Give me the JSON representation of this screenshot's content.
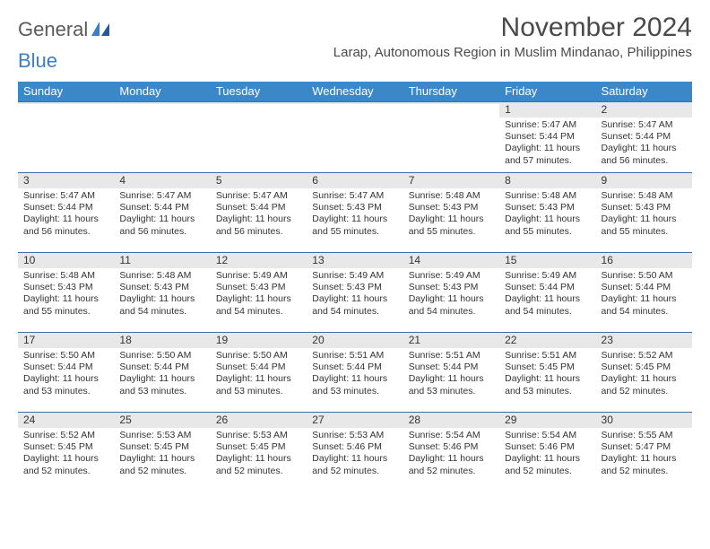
{
  "logo": {
    "text1": "General",
    "text2": "Blue"
  },
  "title": "November 2024",
  "location": "Larap, Autonomous Region in Muslim Mindanao, Philippines",
  "colors": {
    "header_bg": "#3a88c8",
    "header_text": "#ffffff",
    "daynum_bg": "#e8e8e8",
    "week_border": "#3a6ea8",
    "logo_gray": "#5a5a5a",
    "logo_blue": "#3a7fc4",
    "text": "#333333"
  },
  "day_headers": [
    "Sunday",
    "Monday",
    "Tuesday",
    "Wednesday",
    "Thursday",
    "Friday",
    "Saturday"
  ],
  "weeks": [
    [
      {
        "n": "",
        "sr": "",
        "ss": "",
        "dl": ""
      },
      {
        "n": "",
        "sr": "",
        "ss": "",
        "dl": ""
      },
      {
        "n": "",
        "sr": "",
        "ss": "",
        "dl": ""
      },
      {
        "n": "",
        "sr": "",
        "ss": "",
        "dl": ""
      },
      {
        "n": "",
        "sr": "",
        "ss": "",
        "dl": ""
      },
      {
        "n": "1",
        "sr": "Sunrise: 5:47 AM",
        "ss": "Sunset: 5:44 PM",
        "dl": "Daylight: 11 hours and 57 minutes."
      },
      {
        "n": "2",
        "sr": "Sunrise: 5:47 AM",
        "ss": "Sunset: 5:44 PM",
        "dl": "Daylight: 11 hours and 56 minutes."
      }
    ],
    [
      {
        "n": "3",
        "sr": "Sunrise: 5:47 AM",
        "ss": "Sunset: 5:44 PM",
        "dl": "Daylight: 11 hours and 56 minutes."
      },
      {
        "n": "4",
        "sr": "Sunrise: 5:47 AM",
        "ss": "Sunset: 5:44 PM",
        "dl": "Daylight: 11 hours and 56 minutes."
      },
      {
        "n": "5",
        "sr": "Sunrise: 5:47 AM",
        "ss": "Sunset: 5:44 PM",
        "dl": "Daylight: 11 hours and 56 minutes."
      },
      {
        "n": "6",
        "sr": "Sunrise: 5:47 AM",
        "ss": "Sunset: 5:43 PM",
        "dl": "Daylight: 11 hours and 55 minutes."
      },
      {
        "n": "7",
        "sr": "Sunrise: 5:48 AM",
        "ss": "Sunset: 5:43 PM",
        "dl": "Daylight: 11 hours and 55 minutes."
      },
      {
        "n": "8",
        "sr": "Sunrise: 5:48 AM",
        "ss": "Sunset: 5:43 PM",
        "dl": "Daylight: 11 hours and 55 minutes."
      },
      {
        "n": "9",
        "sr": "Sunrise: 5:48 AM",
        "ss": "Sunset: 5:43 PM",
        "dl": "Daylight: 11 hours and 55 minutes."
      }
    ],
    [
      {
        "n": "10",
        "sr": "Sunrise: 5:48 AM",
        "ss": "Sunset: 5:43 PM",
        "dl": "Daylight: 11 hours and 55 minutes."
      },
      {
        "n": "11",
        "sr": "Sunrise: 5:48 AM",
        "ss": "Sunset: 5:43 PM",
        "dl": "Daylight: 11 hours and 54 minutes."
      },
      {
        "n": "12",
        "sr": "Sunrise: 5:49 AM",
        "ss": "Sunset: 5:43 PM",
        "dl": "Daylight: 11 hours and 54 minutes."
      },
      {
        "n": "13",
        "sr": "Sunrise: 5:49 AM",
        "ss": "Sunset: 5:43 PM",
        "dl": "Daylight: 11 hours and 54 minutes."
      },
      {
        "n": "14",
        "sr": "Sunrise: 5:49 AM",
        "ss": "Sunset: 5:43 PM",
        "dl": "Daylight: 11 hours and 54 minutes."
      },
      {
        "n": "15",
        "sr": "Sunrise: 5:49 AM",
        "ss": "Sunset: 5:44 PM",
        "dl": "Daylight: 11 hours and 54 minutes."
      },
      {
        "n": "16",
        "sr": "Sunrise: 5:50 AM",
        "ss": "Sunset: 5:44 PM",
        "dl": "Daylight: 11 hours and 54 minutes."
      }
    ],
    [
      {
        "n": "17",
        "sr": "Sunrise: 5:50 AM",
        "ss": "Sunset: 5:44 PM",
        "dl": "Daylight: 11 hours and 53 minutes."
      },
      {
        "n": "18",
        "sr": "Sunrise: 5:50 AM",
        "ss": "Sunset: 5:44 PM",
        "dl": "Daylight: 11 hours and 53 minutes."
      },
      {
        "n": "19",
        "sr": "Sunrise: 5:50 AM",
        "ss": "Sunset: 5:44 PM",
        "dl": "Daylight: 11 hours and 53 minutes."
      },
      {
        "n": "20",
        "sr": "Sunrise: 5:51 AM",
        "ss": "Sunset: 5:44 PM",
        "dl": "Daylight: 11 hours and 53 minutes."
      },
      {
        "n": "21",
        "sr": "Sunrise: 5:51 AM",
        "ss": "Sunset: 5:44 PM",
        "dl": "Daylight: 11 hours and 53 minutes."
      },
      {
        "n": "22",
        "sr": "Sunrise: 5:51 AM",
        "ss": "Sunset: 5:45 PM",
        "dl": "Daylight: 11 hours and 53 minutes."
      },
      {
        "n": "23",
        "sr": "Sunrise: 5:52 AM",
        "ss": "Sunset: 5:45 PM",
        "dl": "Daylight: 11 hours and 52 minutes."
      }
    ],
    [
      {
        "n": "24",
        "sr": "Sunrise: 5:52 AM",
        "ss": "Sunset: 5:45 PM",
        "dl": "Daylight: 11 hours and 52 minutes."
      },
      {
        "n": "25",
        "sr": "Sunrise: 5:53 AM",
        "ss": "Sunset: 5:45 PM",
        "dl": "Daylight: 11 hours and 52 minutes."
      },
      {
        "n": "26",
        "sr": "Sunrise: 5:53 AM",
        "ss": "Sunset: 5:45 PM",
        "dl": "Daylight: 11 hours and 52 minutes."
      },
      {
        "n": "27",
        "sr": "Sunrise: 5:53 AM",
        "ss": "Sunset: 5:46 PM",
        "dl": "Daylight: 11 hours and 52 minutes."
      },
      {
        "n": "28",
        "sr": "Sunrise: 5:54 AM",
        "ss": "Sunset: 5:46 PM",
        "dl": "Daylight: 11 hours and 52 minutes."
      },
      {
        "n": "29",
        "sr": "Sunrise: 5:54 AM",
        "ss": "Sunset: 5:46 PM",
        "dl": "Daylight: 11 hours and 52 minutes."
      },
      {
        "n": "30",
        "sr": "Sunrise: 5:55 AM",
        "ss": "Sunset: 5:47 PM",
        "dl": "Daylight: 11 hours and 52 minutes."
      }
    ]
  ]
}
